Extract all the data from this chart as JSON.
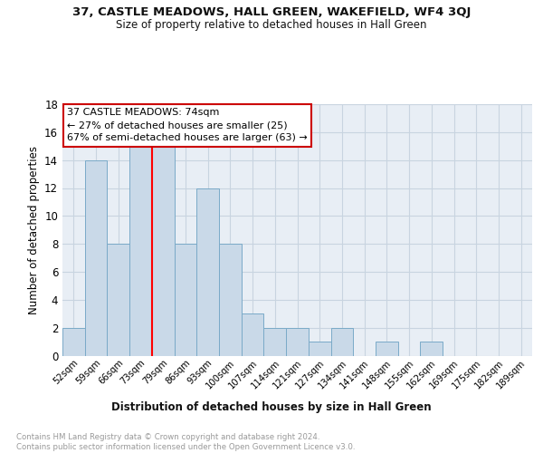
{
  "title": "37, CASTLE MEADOWS, HALL GREEN, WAKEFIELD, WF4 3QJ",
  "subtitle": "Size of property relative to detached houses in Hall Green",
  "xlabel": "Distribution of detached houses by size in Hall Green",
  "ylabel": "Number of detached properties",
  "bar_labels": [
    "52sqm",
    "59sqm",
    "66sqm",
    "73sqm",
    "79sqm",
    "86sqm",
    "93sqm",
    "100sqm",
    "107sqm",
    "114sqm",
    "121sqm",
    "127sqm",
    "134sqm",
    "141sqm",
    "148sqm",
    "155sqm",
    "162sqm",
    "169sqm",
    "175sqm",
    "182sqm",
    "189sqm"
  ],
  "bar_values": [
    2,
    14,
    8,
    15,
    15,
    8,
    12,
    8,
    3,
    2,
    2,
    1,
    2,
    0,
    1,
    0,
    1,
    0,
    0,
    0,
    0
  ],
  "bar_color": "#c9d9e8",
  "bar_edgecolor": "#7aaac8",
  "grid_color": "#c8d4e0",
  "background_color": "#e8eef5",
  "red_line_x": 3.5,
  "annotation_text": "37 CASTLE MEADOWS: 74sqm\n← 27% of detached houses are smaller (25)\n67% of semi-detached houses are larger (63) →",
  "annotation_box_color": "#ffffff",
  "annotation_box_edgecolor": "#cc0000",
  "footer_text": "Contains HM Land Registry data © Crown copyright and database right 2024.\nContains public sector information licensed under the Open Government Licence v3.0.",
  "ylim": [
    0,
    18
  ],
  "yticks": [
    0,
    2,
    4,
    6,
    8,
    10,
    12,
    14,
    16,
    18
  ]
}
